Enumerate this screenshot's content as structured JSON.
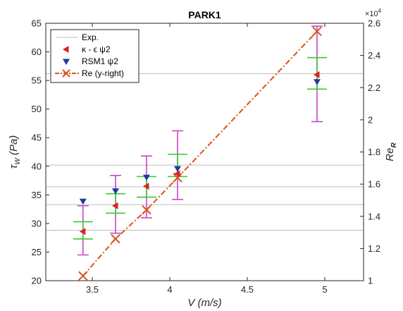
{
  "chart_data": {
    "type": "scatter",
    "title": "PARK1",
    "xlabel": "V  (m/s)",
    "xlim": [
      3.2,
      5.25
    ],
    "xticks": [
      "3.5",
      "4",
      "4.5",
      "5"
    ],
    "xtick_values": [
      3.5,
      4,
      4.5,
      5
    ],
    "ylabel_left": {
      "base": "τ",
      "sub": "W",
      "rest": " (Pa)"
    },
    "ylim_left": [
      20,
      65
    ],
    "yticks_left": [
      "20",
      "25",
      "30",
      "35",
      "40",
      "45",
      "50",
      "55",
      "60",
      "65"
    ],
    "ylabel_right": {
      "base": "Re",
      "sub": "R"
    },
    "ylim_right": [
      1.0,
      2.6
    ],
    "yticks_right": [
      "1",
      "1.2",
      "1.4",
      "1.6",
      "1.8",
      "2",
      "2.2",
      "2.4",
      "2.6"
    ],
    "right_exponent": {
      "base": "×10",
      "power": "4"
    },
    "grid": false,
    "legend_position": "top-left",
    "legend": [
      {
        "label": "Exp.",
        "marker": "line"
      },
      {
        "label": "κ - ϵ ψ2",
        "marker": "triangle-left"
      },
      {
        "label": "RSM1 ψ2",
        "marker": "triangle-down"
      },
      {
        "label": "Re (y-right)",
        "marker": "x-dashdot"
      }
    ],
    "exp_lines": [
      28.8,
      33.3,
      36.4,
      40.2,
      56.2
    ],
    "error_bars": {
      "magenta": [
        {
          "x": 3.44,
          "low": 24.5,
          "high": 33.1
        },
        {
          "x": 3.65,
          "low": 28.3,
          "high": 38.4
        },
        {
          "x": 3.85,
          "low": 31.0,
          "high": 41.8
        },
        {
          "x": 4.05,
          "low": 34.2,
          "high": 46.2
        },
        {
          "x": 4.95,
          "low": 47.8,
          "high": 64.5
        }
      ],
      "green": [
        {
          "x": 3.44,
          "low": 27.3,
          "high": 30.3
        },
        {
          "x": 3.65,
          "low": 31.8,
          "high": 35.2
        },
        {
          "x": 3.85,
          "low": 34.6,
          "high": 38.2
        },
        {
          "x": 4.05,
          "low": 38.2,
          "high": 42.1
        },
        {
          "x": 4.95,
          "low": 53.5,
          "high": 59.0
        }
      ]
    },
    "series": [
      {
        "name": "κ - ϵ ψ2",
        "axis": "left",
        "x": [
          3.44,
          3.65,
          3.85,
          4.05,
          4.95
        ],
        "y": [
          28.6,
          33.1,
          36.5,
          38.7,
          56.0
        ]
      },
      {
        "name": "RSM1 ψ2",
        "axis": "left",
        "x": [
          3.44,
          3.65,
          3.85,
          4.05,
          4.95
        ],
        "y": [
          33.9,
          35.7,
          38.1,
          39.6,
          54.8
        ]
      },
      {
        "name": "Re (y-right)",
        "axis": "right",
        "x": [
          3.44,
          3.65,
          3.85,
          4.05,
          4.95
        ],
        "y": [
          1.03,
          1.26,
          1.44,
          1.64,
          2.55
        ]
      }
    ],
    "colors": {
      "exp": "#bdbdbd",
      "kappa": "#e02020",
      "rsm": "#1f3a9a",
      "re": "#d95319",
      "magenta": "#cc44cc",
      "green": "#33cc33",
      "axis": "#262626"
    }
  }
}
